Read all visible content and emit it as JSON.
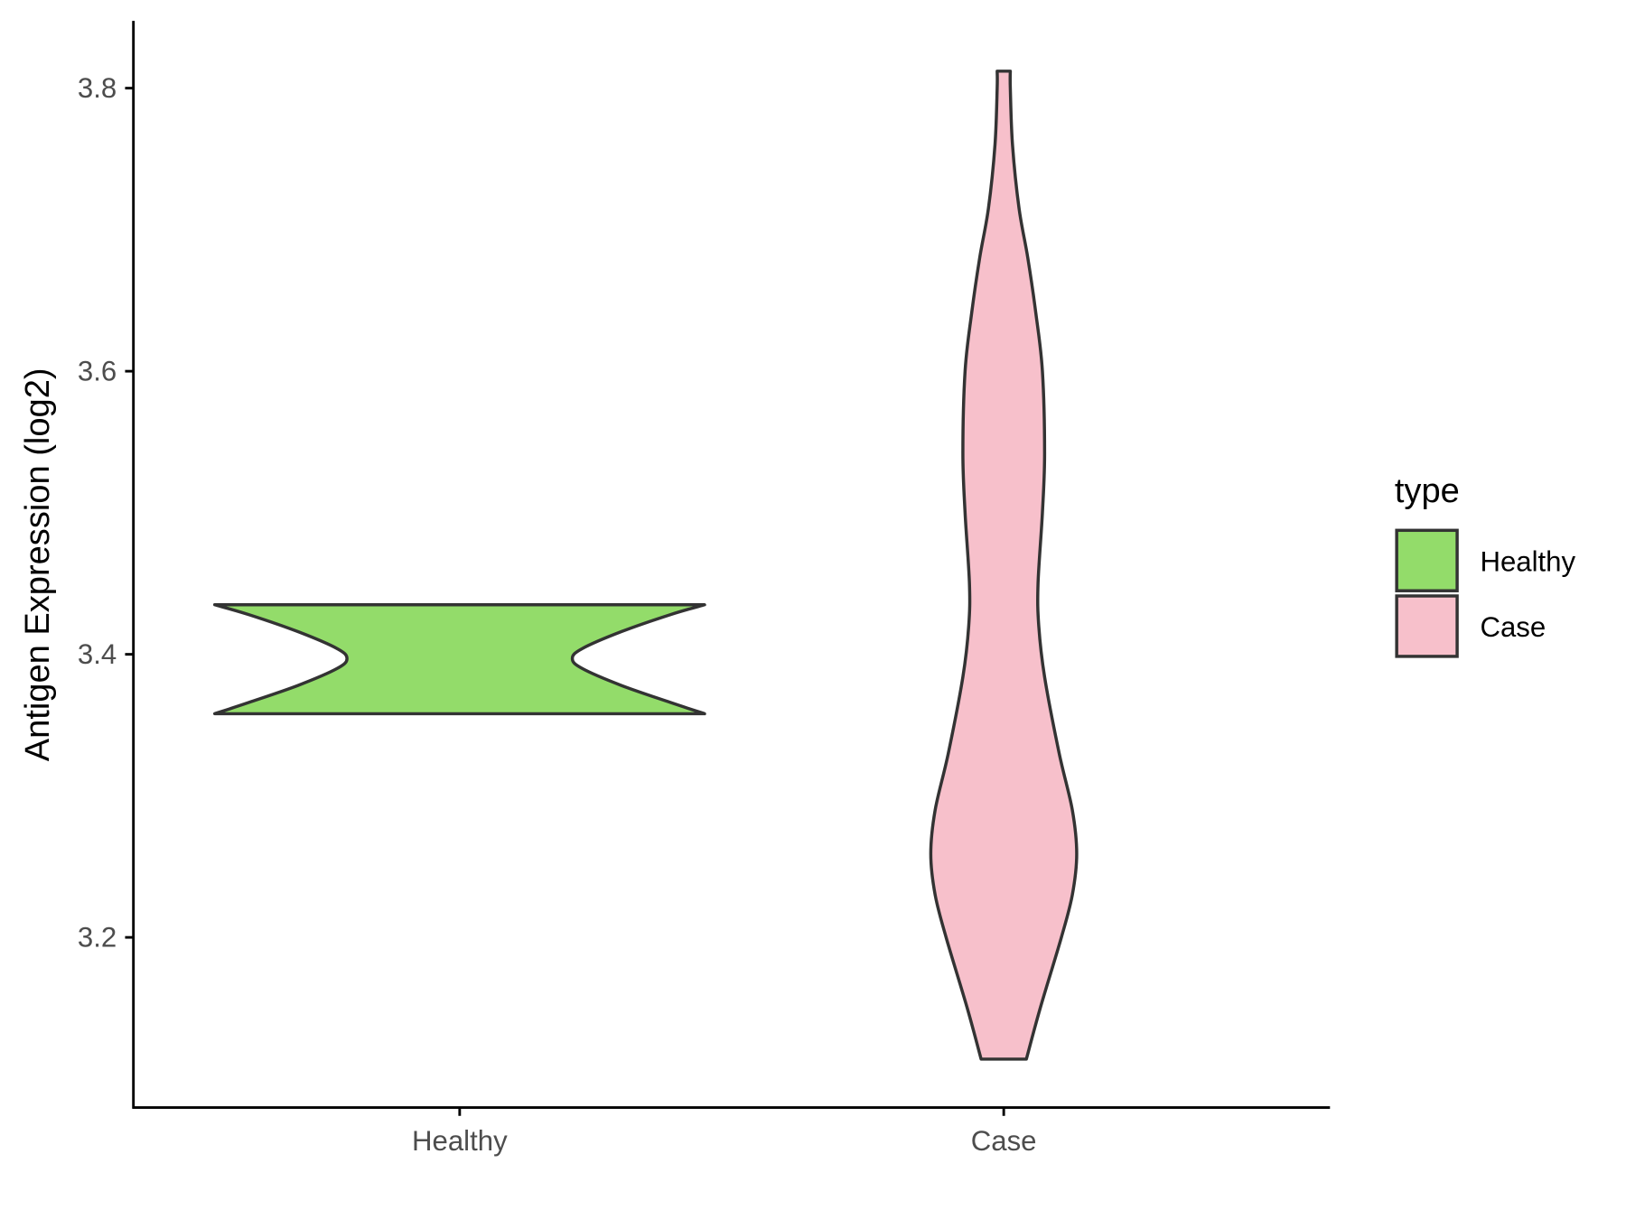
{
  "chart_data": {
    "type": "violin",
    "title": "",
    "xlabel": "",
    "ylabel": "Antigen Expression (log2)",
    "ylim": [
      3.09,
      3.85
    ],
    "yticks": [
      3.2,
      3.4,
      3.6,
      3.8
    ],
    "ytick_labels": [
      "3.2",
      "3.4",
      "3.6",
      "3.8"
    ],
    "categories": [
      "Healthy",
      "Case"
    ],
    "grid": false,
    "legend": {
      "title": "type",
      "position": "right",
      "entries": [
        {
          "label": "Healthy",
          "color": "#93DC6A"
        },
        {
          "label": "Case",
          "color": "#F7C0CB"
        }
      ]
    },
    "series": [
      {
        "name": "Healthy",
        "color": "#93DC6A",
        "range": [
          3.358,
          3.435
        ],
        "density_profile": [
          [
            3.358,
            1.0
          ],
          [
            3.366,
            0.86
          ],
          [
            3.378,
            0.66
          ],
          [
            3.39,
            0.5
          ],
          [
            3.397,
            0.46
          ],
          [
            3.404,
            0.5
          ],
          [
            3.416,
            0.66
          ],
          [
            3.428,
            0.86
          ],
          [
            3.435,
            1.0
          ]
        ]
      },
      {
        "name": "Case",
        "color": "#F7C0CB",
        "range": [
          3.114,
          3.812
        ],
        "density_profile": [
          [
            3.114,
            0.31
          ],
          [
            3.15,
            0.5
          ],
          [
            3.2,
            0.79
          ],
          [
            3.23,
            0.94
          ],
          [
            3.259,
            1.0
          ],
          [
            3.29,
            0.94
          ],
          [
            3.33,
            0.76
          ],
          [
            3.384,
            0.56
          ],
          [
            3.42,
            0.48
          ],
          [
            3.45,
            0.47
          ],
          [
            3.5,
            0.53
          ],
          [
            3.542,
            0.56
          ],
          [
            3.6,
            0.53
          ],
          [
            3.641,
            0.44
          ],
          [
            3.68,
            0.33
          ],
          [
            3.715,
            0.21
          ],
          [
            3.76,
            0.12
          ],
          [
            3.8,
            0.09
          ],
          [
            3.812,
            0.09
          ]
        ]
      }
    ]
  }
}
